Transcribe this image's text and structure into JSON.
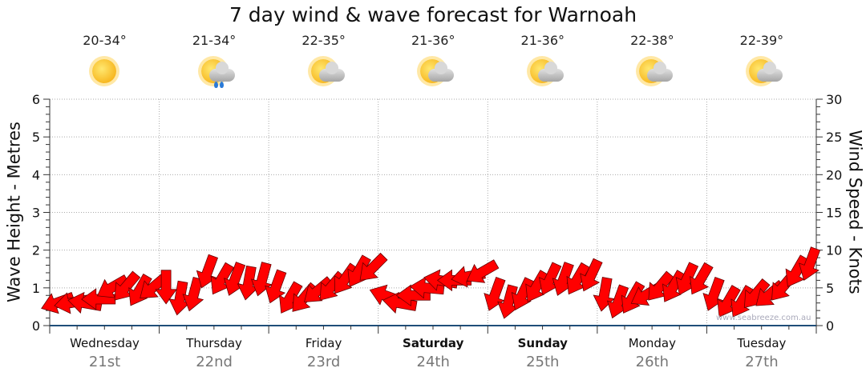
{
  "title": "7 day wind & wave forecast for Warnoah",
  "days": [
    {
      "day": "Wednesday",
      "date": "21st",
      "temp": "20-34°",
      "icon": "sunny",
      "bold": false
    },
    {
      "day": "Thursday",
      "date": "22nd",
      "temp": "21-34°",
      "icon": "partly-cloudy-showers",
      "bold": false
    },
    {
      "day": "Friday",
      "date": "23rd",
      "temp": "22-35°",
      "icon": "partly-cloudy",
      "bold": false
    },
    {
      "day": "Saturday",
      "date": "24th",
      "temp": "21-36°",
      "icon": "partly-cloudy",
      "bold": true
    },
    {
      "day": "Sunday",
      "date": "25th",
      "temp": "21-36°",
      "icon": "partly-cloudy",
      "bold": true
    },
    {
      "day": "Monday",
      "date": "26th",
      "temp": "22-38°",
      "icon": "partly-cloudy",
      "bold": false
    },
    {
      "day": "Tuesday",
      "date": "27th",
      "temp": "22-39°",
      "icon": "partly-cloudy",
      "bold": false
    }
  ],
  "watermark": "www.seabreeze.com.au",
  "chart_data": {
    "type": "scatter",
    "title": "7 day wind & wave forecast for Warnoah",
    "ylabel": "Wave Height - Metres",
    "y2label": "Wind Speed - Knots",
    "ylim": [
      0,
      6
    ],
    "y2lim": [
      0,
      30
    ],
    "yticks": [
      "0",
      "1",
      "2",
      "3",
      "4",
      "5",
      "6"
    ],
    "y2ticks": [
      "0",
      "5",
      "10",
      "15",
      "20",
      "25",
      "30"
    ],
    "grid": true,
    "series": [
      {
        "name": "Wind",
        "unit": "knots",
        "speed": [
          3,
          3,
          3,
          3.5,
          5,
          5,
          4.5,
          5,
          5,
          3.5,
          4,
          7,
          6,
          6,
          5.5,
          6,
          5,
          3.5,
          3.5,
          4.5,
          5,
          6,
          7,
          7.5,
          4,
          3,
          4,
          5,
          6,
          6,
          6.5,
          7,
          4,
          3,
          4,
          5,
          6,
          6,
          6,
          6.5,
          4,
          3,
          3.5,
          4,
          5,
          5,
          6,
          6,
          4,
          3,
          3,
          4,
          4,
          5,
          7,
          8
        ],
        "direction_deg": [
          70,
          80,
          100,
          90,
          60,
          40,
          30,
          50,
          0,
          10,
          15,
          20,
          30,
          20,
          10,
          15,
          20,
          30,
          40,
          50,
          40,
          35,
          30,
          45,
          110,
          100,
          90,
          95,
          100,
          90,
          80,
          60,
          20,
          15,
          25,
          30,
          25,
          20,
          30,
          25,
          10,
          20,
          30,
          60,
          40,
          30,
          25,
          30,
          20,
          30,
          30,
          40,
          50,
          40,
          30,
          20
        ]
      }
    ]
  }
}
